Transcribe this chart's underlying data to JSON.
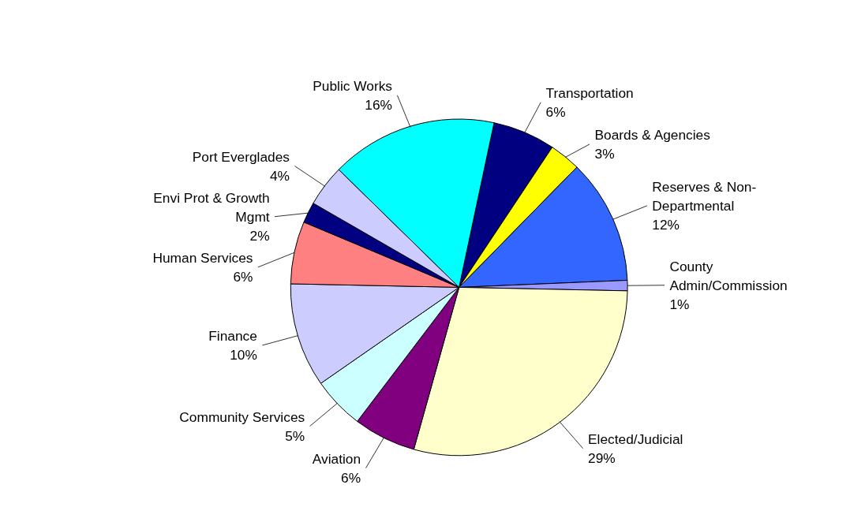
{
  "chart_data": {
    "type": "pie",
    "categories": [
      "Transportation",
      "Boards & Agencies",
      "Reserves & Non-Departmental",
      "County Admin/Commission",
      "Elected/Judicial",
      "Aviation",
      "Community Services",
      "Finance",
      "Human Services",
      "Envi Prot & Growth Mgmt",
      "Port Everglades",
      "Public Works"
    ],
    "values": [
      6,
      3,
      12,
      1,
      29,
      6,
      5,
      10,
      6,
      2,
      4,
      16
    ],
    "value_labels": [
      "6%",
      "3%",
      "12%",
      "1%",
      "29%",
      "6%",
      "5%",
      "10%",
      "6%",
      "2%",
      "4%",
      "16%"
    ],
    "colors": [
      "#000080",
      "#ffff00",
      "#3366ff",
      "#9999ff",
      "#ffffcc",
      "#800080",
      "#ccffff",
      "#ccccff",
      "#ff8080",
      "#000080",
      "#ccccff",
      "#00ffff"
    ]
  }
}
